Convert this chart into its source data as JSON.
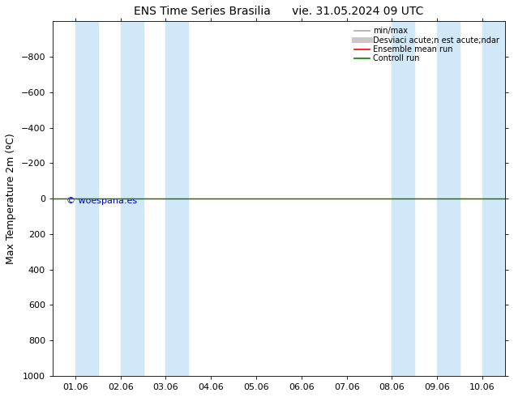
{
  "title_left": "ENS Time Series Brasilia",
  "title_right": "vie. 31.05.2024 09 UTC",
  "ylabel": "Max Temperature 2m (ºC)",
  "ylim_bottom": -1000,
  "ylim_top": 1000,
  "yticks": [
    -800,
    -600,
    -400,
    -200,
    0,
    200,
    400,
    600,
    800,
    1000
  ],
  "xtick_labels": [
    "01.06",
    "02.06",
    "03.06",
    "04.06",
    "05.06",
    "06.06",
    "07.06",
    "08.06",
    "09.06",
    "10.06"
  ],
  "xtick_positions": [
    0,
    1,
    2,
    3,
    4,
    5,
    6,
    7,
    8,
    9
  ],
  "shade_bands": [
    [
      0.0,
      0.5
    ],
    [
      1.0,
      1.5
    ],
    [
      2.0,
      2.5
    ],
    [
      7.0,
      7.5
    ],
    [
      8.0,
      8.5
    ],
    [
      9.0,
      9.5
    ]
  ],
  "shade_color": "#d0e8f8",
  "control_run_y": 0,
  "control_run_color": "#008000",
  "ensemble_mean_color": "#ff0000",
  "minmax_color": "#aaaaaa",
  "stddev_color": "#c8c8c8",
  "watermark": "© woespana.es",
  "watermark_color": "#0000cc",
  "background_color": "#ffffff",
  "plot_background": "#ffffff",
  "legend_labels": [
    "min/max",
    "Desviaci acute;n est acute;ndar",
    "Ensemble mean run",
    "Controll run"
  ],
  "legend_colors": [
    "#aaaaaa",
    "#c8c8c8",
    "#ff0000",
    "#008000"
  ],
  "title_fontsize": 10,
  "axis_fontsize": 9,
  "tick_fontsize": 8
}
